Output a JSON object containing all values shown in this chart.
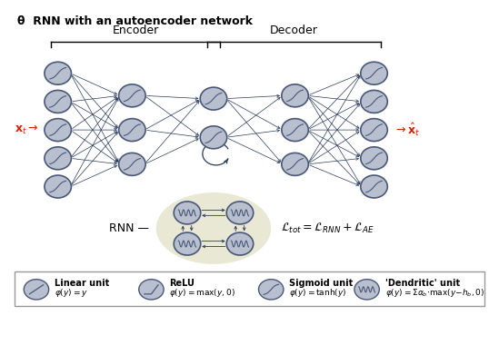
{
  "title": "θ  RNN with an autoencoder network",
  "encoder_label": "Encoder",
  "decoder_label": "Decoder",
  "rnn_label": "RNN",
  "x_input_label": "$\\mathbf{x}_t\\rightarrow$",
  "x_output_label": "$\\rightarrow\\hat{\\mathbf{x}}_t$",
  "node_color": "#b8bfce",
  "node_edge_color": "#4a5878",
  "bg_color": "#ffffff",
  "arrow_color": "#2a3a5a",
  "rnn_bg_color": "#e8e8d4",
  "legend_entries": [
    {
      "label": "Linear unit",
      "formula": "$\\varphi(y) = y$",
      "symbol": "linear"
    },
    {
      "label": "ReLU",
      "formula": "$\\varphi(y) = \\max(y, 0)$",
      "symbol": "relu"
    },
    {
      "label": "Sigmoid unit",
      "formula": "$\\varphi(y) = \\tanh(y)$",
      "symbol": "sigmoid"
    },
    {
      "label": "'Dendritic' unit",
      "formula": "$\\varphi(y) = \\Sigma\\alpha_b{\\cdot}\\max(y{-}h_b, 0)$",
      "symbol": "dendritic"
    }
  ]
}
